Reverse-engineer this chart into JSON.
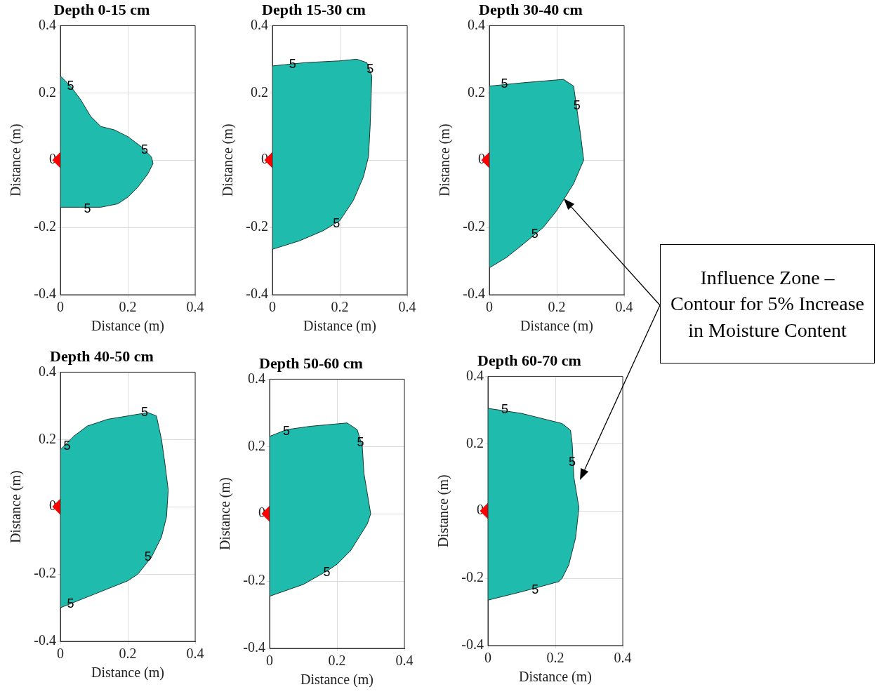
{
  "chart_data": [
    {
      "type": "area",
      "title": "Depth 0-15 cm",
      "xlabel": "Distance (m)",
      "ylabel": "Distance (m)",
      "xlim": [
        0,
        0.4
      ],
      "ylim": [
        -0.4,
        0.4
      ],
      "xticks": [
        0,
        0.2,
        0.4
      ],
      "yticks": [
        -0.4,
        -0.2,
        0,
        0.2,
        0.4
      ],
      "grid": true,
      "legend": false,
      "series": [
        {
          "type": "area",
          "color": "#1fbcad",
          "x": [
            0,
            0.03,
            0.06,
            0.09,
            0.12,
            0.16,
            0.2,
            0.24,
            0.27,
            0.275,
            0.26,
            0.23,
            0.2,
            0.17,
            0.12,
            0.06,
            0
          ],
          "values": [
            0.25,
            0.22,
            0.18,
            0.13,
            0.1,
            0.09,
            0.07,
            0.04,
            0.01,
            -0.01,
            -0.04,
            -0.08,
            -0.11,
            -0.13,
            -0.14,
            -0.14,
            -0.14
          ]
        },
        {
          "type": "scatter",
          "color": "#ff0000",
          "marker": "diamond",
          "x": [
            0
          ],
          "values": [
            0
          ]
        }
      ],
      "annotations": [
        {
          "text": "5",
          "x": 0.03,
          "y": 0.22
        },
        {
          "text": "5",
          "x": 0.25,
          "y": 0.03
        },
        {
          "text": "5",
          "x": 0.08,
          "y": -0.145
        }
      ]
    },
    {
      "type": "area",
      "title": "Depth 15-30 cm",
      "xlabel": "Distance (m)",
      "ylabel": "Distance (m)",
      "xlim": [
        0,
        0.4
      ],
      "ylim": [
        -0.4,
        0.4
      ],
      "xticks": [
        0,
        0.2,
        0.4
      ],
      "yticks": [
        -0.4,
        -0.2,
        0,
        0.2,
        0.4
      ],
      "grid": true,
      "legend": false,
      "series": [
        {
          "type": "area",
          "color": "#1fbcad",
          "x": [
            0,
            0.1,
            0.2,
            0.25,
            0.28,
            0.295,
            0.29,
            0.285,
            0.27,
            0.24,
            0.2,
            0.15,
            0.08,
            0
          ],
          "values": [
            0.28,
            0.29,
            0.295,
            0.3,
            0.29,
            0.25,
            0.1,
            0.01,
            -0.05,
            -0.12,
            -0.18,
            -0.21,
            -0.24,
            -0.265
          ]
        },
        {
          "type": "scatter",
          "color": "#ff0000",
          "marker": "diamond",
          "x": [
            0
          ],
          "values": [
            0
          ]
        }
      ],
      "annotations": [
        {
          "text": "5",
          "x": 0.06,
          "y": 0.285
        },
        {
          "text": "5",
          "x": 0.29,
          "y": 0.27
        },
        {
          "text": "5",
          "x": 0.19,
          "y": -0.19
        }
      ]
    },
    {
      "type": "area",
      "title": "Depth 30-40 cm",
      "xlabel": "Distance (m)",
      "ylabel": "Distance (m)",
      "xlim": [
        0,
        0.4
      ],
      "ylim": [
        -0.4,
        0.4
      ],
      "xticks": [
        0,
        0.2,
        0.4
      ],
      "yticks": [
        -0.4,
        -0.2,
        0,
        0.2,
        0.4
      ],
      "grid": true,
      "legend": false,
      "series": [
        {
          "type": "area",
          "color": "#1fbcad",
          "x": [
            0,
            0.1,
            0.22,
            0.25,
            0.26,
            0.27,
            0.28,
            0.25,
            0.2,
            0.16,
            0.1,
            0.05,
            0
          ],
          "values": [
            0.22,
            0.23,
            0.24,
            0.22,
            0.15,
            0.08,
            0.0,
            -0.07,
            -0.15,
            -0.2,
            -0.25,
            -0.29,
            -0.32
          ]
        },
        {
          "type": "scatter",
          "color": "#ff0000",
          "marker": "diamond",
          "x": [
            0
          ],
          "values": [
            0
          ]
        }
      ],
      "annotations": [
        {
          "text": "5",
          "x": 0.045,
          "y": 0.225
        },
        {
          "text": "5",
          "x": 0.26,
          "y": 0.16
        },
        {
          "text": "5",
          "x": 0.135,
          "y": -0.22
        },
        "Influence Zone – Contour for 5% Increase in Moisture Content"
      ]
    },
    {
      "type": "area",
      "title": "Depth 40-50 cm",
      "xlabel": "Distance (m)",
      "ylabel": "Distance (m)",
      "xlim": [
        0,
        0.4
      ],
      "ylim": [
        -0.4,
        0.4
      ],
      "xticks": [
        0,
        0.2,
        0.4
      ],
      "yticks": [
        -0.4,
        -0.2,
        0,
        0.2,
        0.4
      ],
      "grid": true,
      "legend": false,
      "series": [
        {
          "type": "area",
          "color": "#1fbcad",
          "x": [
            0,
            0.04,
            0.08,
            0.14,
            0.2,
            0.26,
            0.285,
            0.3,
            0.31,
            0.32,
            0.315,
            0.3,
            0.27,
            0.23,
            0.2,
            0.1,
            0
          ],
          "values": [
            0.17,
            0.21,
            0.24,
            0.26,
            0.27,
            0.28,
            0.27,
            0.2,
            0.13,
            0.05,
            -0.03,
            -0.09,
            -0.15,
            -0.2,
            -0.22,
            -0.26,
            -0.3
          ]
        },
        {
          "type": "scatter",
          "color": "#ff0000",
          "marker": "diamond",
          "x": [
            0
          ],
          "values": [
            0
          ]
        }
      ],
      "annotations": [
        {
          "text": "5",
          "x": 0.02,
          "y": 0.18
        },
        {
          "text": "5",
          "x": 0.25,
          "y": 0.28
        },
        {
          "text": "5",
          "x": 0.26,
          "y": -0.15
        },
        {
          "text": "5",
          "x": 0.03,
          "y": -0.29
        }
      ]
    },
    {
      "type": "area",
      "title": "Depth 50-60 cm",
      "xlabel": "Distance (m)",
      "ylabel": "Distance (m)",
      "xlim": [
        0,
        0.4
      ],
      "ylim": [
        -0.4,
        0.4
      ],
      "xticks": [
        0,
        0.2,
        0.4
      ],
      "yticks": [
        -0.4,
        -0.2,
        0,
        0.2,
        0.4
      ],
      "grid": true,
      "legend": false,
      "series": [
        {
          "type": "area",
          "color": "#1fbcad",
          "x": [
            0,
            0.05,
            0.12,
            0.23,
            0.26,
            0.275,
            0.28,
            0.3,
            0.29,
            0.24,
            0.2,
            0.17,
            0.1,
            0
          ],
          "values": [
            0.23,
            0.25,
            0.26,
            0.27,
            0.25,
            0.2,
            0.12,
            0.0,
            -0.03,
            -0.11,
            -0.15,
            -0.17,
            -0.21,
            -0.245
          ]
        },
        {
          "type": "scatter",
          "color": "#ff0000",
          "marker": "diamond",
          "x": [
            0
          ],
          "values": [
            0
          ]
        }
      ],
      "annotations": [
        {
          "text": "5",
          "x": 0.05,
          "y": 0.245
        },
        {
          "text": "5",
          "x": 0.27,
          "y": 0.21
        },
        {
          "text": "5",
          "x": 0.17,
          "y": -0.175
        }
      ]
    },
    {
      "type": "area",
      "title": "Depth 60-70 cm",
      "xlabel": "Distance (m)",
      "ylabel": "Distance (m)",
      "xlim": [
        0,
        0.4
      ],
      "ylim": [
        -0.4,
        0.4
      ],
      "xticks": [
        0,
        0.2,
        0.4
      ],
      "yticks": [
        -0.4,
        -0.2,
        0,
        0.2,
        0.4
      ],
      "grid": true,
      "legend": false,
      "series": [
        {
          "type": "area",
          "color": "#1fbcad",
          "x": [
            0,
            0.1,
            0.22,
            0.245,
            0.25,
            0.255,
            0.27,
            0.26,
            0.24,
            0.22,
            0.21,
            0.1,
            0
          ],
          "values": [
            0.305,
            0.29,
            0.26,
            0.24,
            0.2,
            0.1,
            0.01,
            -0.08,
            -0.16,
            -0.2,
            -0.21,
            -0.24,
            -0.265
          ]
        },
        {
          "type": "scatter",
          "color": "#ff0000",
          "marker": "diamond",
          "x": [
            0
          ],
          "values": [
            0
          ]
        }
      ],
      "annotations": [
        {
          "text": "5",
          "x": 0.05,
          "y": 0.3
        },
        {
          "text": "5",
          "x": 0.25,
          "y": 0.145
        },
        {
          "text": "5",
          "x": 0.14,
          "y": -0.235
        }
      ]
    }
  ]
}
